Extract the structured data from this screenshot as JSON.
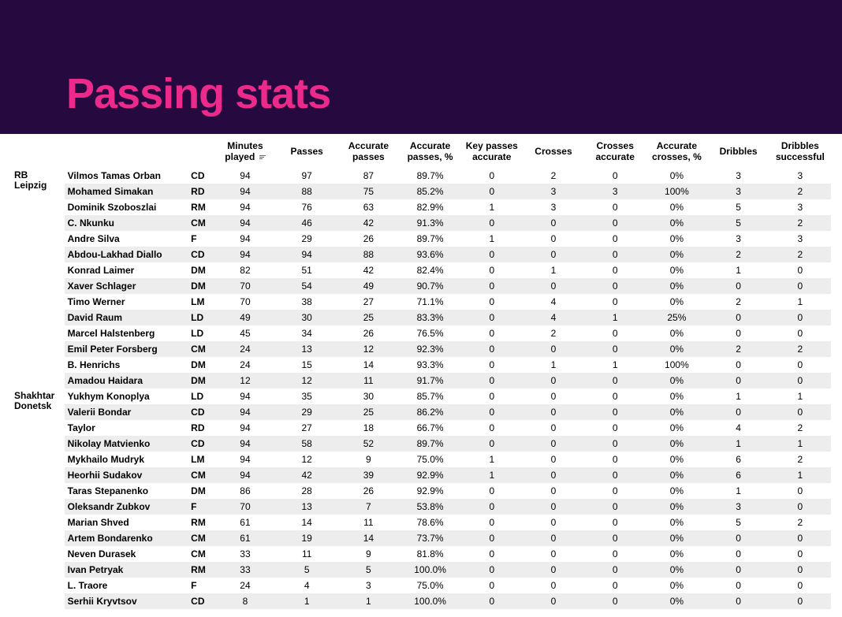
{
  "title": "Passing stats",
  "colors": {
    "header_bg": "#26093f",
    "title_color": "#ec2a8b",
    "row_stripe": "#ededed",
    "text": "#000000",
    "page_bg": "#ffffff"
  },
  "columns": [
    {
      "key": "minutes",
      "label": "Minutes played",
      "sorted": true
    },
    {
      "key": "passes",
      "label": "Passes",
      "sorted": false
    },
    {
      "key": "acc_passes",
      "label": "Accurate passes",
      "sorted": false
    },
    {
      "key": "acc_passes_pct",
      "label": "Accurate passes, %",
      "sorted": false
    },
    {
      "key": "key_passes",
      "label": "Key passes accurate",
      "sorted": false
    },
    {
      "key": "crosses",
      "label": "Crosses",
      "sorted": false
    },
    {
      "key": "crosses_acc",
      "label": "Crosses accurate",
      "sorted": false
    },
    {
      "key": "crosses_acc_pct",
      "label": "Accurate crosses, %",
      "sorted": false
    },
    {
      "key": "dribbles",
      "label": "Dribbles",
      "sorted": false
    },
    {
      "key": "dribbles_succ",
      "label": "Dribbles successful",
      "sorted": false
    }
  ],
  "teams": [
    {
      "name": "RB Leipzig",
      "players": [
        {
          "name": "Vilmos Tamas Orban",
          "pos": "CD",
          "minutes": 94,
          "passes": 97,
          "acc_passes": 87,
          "acc_passes_pct": "89.7%",
          "key_passes": 0,
          "crosses": 2,
          "crosses_acc": 0,
          "crosses_acc_pct": "0%",
          "dribbles": 3,
          "dribbles_succ": 3
        },
        {
          "name": "Mohamed Simakan",
          "pos": "RD",
          "minutes": 94,
          "passes": 88,
          "acc_passes": 75,
          "acc_passes_pct": "85.2%",
          "key_passes": 0,
          "crosses": 3,
          "crosses_acc": 3,
          "crosses_acc_pct": "100%",
          "dribbles": 3,
          "dribbles_succ": 2
        },
        {
          "name": "Dominik Szoboszlai",
          "pos": "RM",
          "minutes": 94,
          "passes": 76,
          "acc_passes": 63,
          "acc_passes_pct": "82.9%",
          "key_passes": 1,
          "crosses": 3,
          "crosses_acc": 0,
          "crosses_acc_pct": "0%",
          "dribbles": 5,
          "dribbles_succ": 3
        },
        {
          "name": "C. Nkunku",
          "pos": "CM",
          "minutes": 94,
          "passes": 46,
          "acc_passes": 42,
          "acc_passes_pct": "91.3%",
          "key_passes": 0,
          "crosses": 0,
          "crosses_acc": 0,
          "crosses_acc_pct": "0%",
          "dribbles": 5,
          "dribbles_succ": 2
        },
        {
          "name": "Andre Silva",
          "pos": "F",
          "minutes": 94,
          "passes": 29,
          "acc_passes": 26,
          "acc_passes_pct": "89.7%",
          "key_passes": 1,
          "crosses": 0,
          "crosses_acc": 0,
          "crosses_acc_pct": "0%",
          "dribbles": 3,
          "dribbles_succ": 3
        },
        {
          "name": "Abdou-Lakhad Diallo",
          "pos": "CD",
          "minutes": 94,
          "passes": 94,
          "acc_passes": 88,
          "acc_passes_pct": "93.6%",
          "key_passes": 0,
          "crosses": 0,
          "crosses_acc": 0,
          "crosses_acc_pct": "0%",
          "dribbles": 2,
          "dribbles_succ": 2
        },
        {
          "name": "Konrad Laimer",
          "pos": "DM",
          "minutes": 82,
          "passes": 51,
          "acc_passes": 42,
          "acc_passes_pct": "82.4%",
          "key_passes": 0,
          "crosses": 1,
          "crosses_acc": 0,
          "crosses_acc_pct": "0%",
          "dribbles": 1,
          "dribbles_succ": 0
        },
        {
          "name": "Xaver Schlager",
          "pos": "DM",
          "minutes": 70,
          "passes": 54,
          "acc_passes": 49,
          "acc_passes_pct": "90.7%",
          "key_passes": 0,
          "crosses": 0,
          "crosses_acc": 0,
          "crosses_acc_pct": "0%",
          "dribbles": 0,
          "dribbles_succ": 0
        },
        {
          "name": "Timo Werner",
          "pos": "LM",
          "minutes": 70,
          "passes": 38,
          "acc_passes": 27,
          "acc_passes_pct": "71.1%",
          "key_passes": 0,
          "crosses": 4,
          "crosses_acc": 0,
          "crosses_acc_pct": "0%",
          "dribbles": 2,
          "dribbles_succ": 1
        },
        {
          "name": "David Raum",
          "pos": "LD",
          "minutes": 49,
          "passes": 30,
          "acc_passes": 25,
          "acc_passes_pct": "83.3%",
          "key_passes": 0,
          "crosses": 4,
          "crosses_acc": 1,
          "crosses_acc_pct": "25%",
          "dribbles": 0,
          "dribbles_succ": 0
        },
        {
          "name": "Marcel Halstenberg",
          "pos": "LD",
          "minutes": 45,
          "passes": 34,
          "acc_passes": 26,
          "acc_passes_pct": "76.5%",
          "key_passes": 0,
          "crosses": 2,
          "crosses_acc": 0,
          "crosses_acc_pct": "0%",
          "dribbles": 0,
          "dribbles_succ": 0
        },
        {
          "name": "Emil Peter Forsberg",
          "pos": "CM",
          "minutes": 24,
          "passes": 13,
          "acc_passes": 12,
          "acc_passes_pct": "92.3%",
          "key_passes": 0,
          "crosses": 0,
          "crosses_acc": 0,
          "crosses_acc_pct": "0%",
          "dribbles": 2,
          "dribbles_succ": 2
        },
        {
          "name": "B. Henrichs",
          "pos": "DM",
          "minutes": 24,
          "passes": 15,
          "acc_passes": 14,
          "acc_passes_pct": "93.3%",
          "key_passes": 0,
          "crosses": 1,
          "crosses_acc": 1,
          "crosses_acc_pct": "100%",
          "dribbles": 0,
          "dribbles_succ": 0
        },
        {
          "name": "Amadou Haidara",
          "pos": "DM",
          "minutes": 12,
          "passes": 12,
          "acc_passes": 11,
          "acc_passes_pct": "91.7%",
          "key_passes": 0,
          "crosses": 0,
          "crosses_acc": 0,
          "crosses_acc_pct": "0%",
          "dribbles": 0,
          "dribbles_succ": 0
        }
      ]
    },
    {
      "name": "Shakhtar Donetsk",
      "players": [
        {
          "name": "Yukhym Konoplya",
          "pos": "LD",
          "minutes": 94,
          "passes": 35,
          "acc_passes": 30,
          "acc_passes_pct": "85.7%",
          "key_passes": 0,
          "crosses": 0,
          "crosses_acc": 0,
          "crosses_acc_pct": "0%",
          "dribbles": 1,
          "dribbles_succ": 1
        },
        {
          "name": "Valerii Bondar",
          "pos": "CD",
          "minutes": 94,
          "passes": 29,
          "acc_passes": 25,
          "acc_passes_pct": "86.2%",
          "key_passes": 0,
          "crosses": 0,
          "crosses_acc": 0,
          "crosses_acc_pct": "0%",
          "dribbles": 0,
          "dribbles_succ": 0
        },
        {
          "name": "Taylor",
          "pos": "RD",
          "minutes": 94,
          "passes": 27,
          "acc_passes": 18,
          "acc_passes_pct": "66.7%",
          "key_passes": 0,
          "crosses": 0,
          "crosses_acc": 0,
          "crosses_acc_pct": "0%",
          "dribbles": 4,
          "dribbles_succ": 2
        },
        {
          "name": "Nikolay Matvienko",
          "pos": "CD",
          "minutes": 94,
          "passes": 58,
          "acc_passes": 52,
          "acc_passes_pct": "89.7%",
          "key_passes": 0,
          "crosses": 0,
          "crosses_acc": 0,
          "crosses_acc_pct": "0%",
          "dribbles": 1,
          "dribbles_succ": 1
        },
        {
          "name": "Mykhailo Mudryk",
          "pos": "LM",
          "minutes": 94,
          "passes": 12,
          "acc_passes": 9,
          "acc_passes_pct": "75.0%",
          "key_passes": 1,
          "crosses": 0,
          "crosses_acc": 0,
          "crosses_acc_pct": "0%",
          "dribbles": 6,
          "dribbles_succ": 2
        },
        {
          "name": "Heorhii Sudakov",
          "pos": "CM",
          "minutes": 94,
          "passes": 42,
          "acc_passes": 39,
          "acc_passes_pct": "92.9%",
          "key_passes": 1,
          "crosses": 0,
          "crosses_acc": 0,
          "crosses_acc_pct": "0%",
          "dribbles": 6,
          "dribbles_succ": 1
        },
        {
          "name": "Taras Stepanenko",
          "pos": "DM",
          "minutes": 86,
          "passes": 28,
          "acc_passes": 26,
          "acc_passes_pct": "92.9%",
          "key_passes": 0,
          "crosses": 0,
          "crosses_acc": 0,
          "crosses_acc_pct": "0%",
          "dribbles": 1,
          "dribbles_succ": 0
        },
        {
          "name": "Oleksandr Zubkov",
          "pos": "F",
          "minutes": 70,
          "passes": 13,
          "acc_passes": 7,
          "acc_passes_pct": "53.8%",
          "key_passes": 0,
          "crosses": 0,
          "crosses_acc": 0,
          "crosses_acc_pct": "0%",
          "dribbles": 3,
          "dribbles_succ": 0
        },
        {
          "name": "Marian Shved",
          "pos": "RM",
          "minutes": 61,
          "passes": 14,
          "acc_passes": 11,
          "acc_passes_pct": "78.6%",
          "key_passes": 0,
          "crosses": 0,
          "crosses_acc": 0,
          "crosses_acc_pct": "0%",
          "dribbles": 5,
          "dribbles_succ": 2
        },
        {
          "name": "Artem Bondarenko",
          "pos": "CM",
          "minutes": 61,
          "passes": 19,
          "acc_passes": 14,
          "acc_passes_pct": "73.7%",
          "key_passes": 0,
          "crosses": 0,
          "crosses_acc": 0,
          "crosses_acc_pct": "0%",
          "dribbles": 0,
          "dribbles_succ": 0
        },
        {
          "name": "Neven Durasek",
          "pos": "CM",
          "minutes": 33,
          "passes": 11,
          "acc_passes": 9,
          "acc_passes_pct": "81.8%",
          "key_passes": 0,
          "crosses": 0,
          "crosses_acc": 0,
          "crosses_acc_pct": "0%",
          "dribbles": 0,
          "dribbles_succ": 0
        },
        {
          "name": "Ivan Petryak",
          "pos": "RM",
          "minutes": 33,
          "passes": 5,
          "acc_passes": 5,
          "acc_passes_pct": "100.0%",
          "key_passes": 0,
          "crosses": 0,
          "crosses_acc": 0,
          "crosses_acc_pct": "0%",
          "dribbles": 0,
          "dribbles_succ": 0
        },
        {
          "name": "L. Traore",
          "pos": "F",
          "minutes": 24,
          "passes": 4,
          "acc_passes": 3,
          "acc_passes_pct": "75.0%",
          "key_passes": 0,
          "crosses": 0,
          "crosses_acc": 0,
          "crosses_acc_pct": "0%",
          "dribbles": 0,
          "dribbles_succ": 0
        },
        {
          "name": "Serhii Kryvtsov",
          "pos": "CD",
          "minutes": 8,
          "passes": 1,
          "acc_passes": 1,
          "acc_passes_pct": "100.0%",
          "key_passes": 0,
          "crosses": 0,
          "crosses_acc": 0,
          "crosses_acc_pct": "0%",
          "dribbles": 0,
          "dribbles_succ": 0
        }
      ]
    }
  ]
}
